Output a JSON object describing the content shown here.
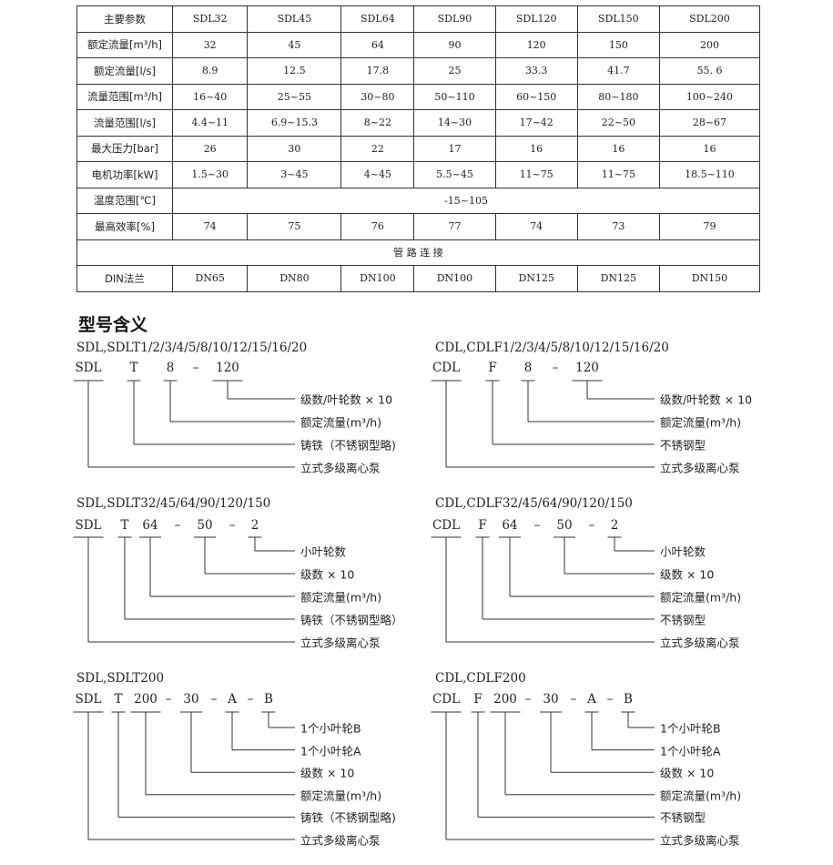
{
  "table": {
    "header": [
      "主要参数",
      "SDL32",
      "SDL45",
      "SDL64",
      "SDL90",
      "SDL120",
      "SDL150",
      "SDL200"
    ],
    "rows": [
      [
        "额定流量[m³/h]",
        "32",
        "45",
        "64",
        "90",
        "120",
        "150",
        "200"
      ],
      [
        "额定流量[l/s]",
        "8.9",
        "12.5",
        "17.8",
        "25",
        "33.3",
        "41.7",
        "55. 6"
      ],
      [
        "流量范围[m³/h]",
        "16~40",
        "25~55",
        "30~80",
        "50~110",
        "60~150",
        "80~180",
        "100~240"
      ],
      [
        "流量范围[l/s]",
        "4.4~11",
        "6.9~15.3",
        "8~22",
        "14~30",
        "17~42",
        "22~50",
        "28~67"
      ],
      [
        "最大压力[bar]",
        "26",
        "30",
        "22",
        "17",
        "16",
        "16",
        "16"
      ],
      [
        "电机功率[kW]",
        "1.5~30",
        "3~45",
        "4~45",
        "5.5~45",
        "11~75",
        "11~75",
        "18.5~110"
      ]
    ],
    "temp_label": "温度范围[℃]",
    "temp_value": "-15~105",
    "eff_row": [
      "最高效率[%]",
      "74",
      "75",
      "76",
      "77",
      "74",
      "73",
      "79"
    ],
    "pipe_section": "管 路 连 接",
    "din_row": [
      "DIN法兰",
      "DN65",
      "DN80",
      "DN100",
      "DN100",
      "DN125",
      "DN125",
      "DN150"
    ]
  },
  "section_title": "型号含义",
  "blocks": [
    {
      "title": "SDL,SDLT1/2/3/4/5/8/10/12/15/16/20",
      "codes": [
        "SDL",
        "T",
        "8",
        "–",
        "120"
      ],
      "labels": [
        "级数/叶轮数 × 10",
        "额定流量(m³/h)",
        "铸铁（不锈钢型略)",
        "立式多级离心泵"
      ]
    },
    {
      "title": "CDL,CDLF1/2/3/4/5/8/10/12/15/16/20",
      "codes": [
        "CDL",
        "F",
        "8",
        "–",
        "120"
      ],
      "labels": [
        "级数/叶轮数 × 10",
        "额定流量(m³/h)",
        "不锈钢型",
        "立式多级离心泵"
      ]
    },
    {
      "title": "SDL,SDLT32/45/64/90/120/150",
      "codes": [
        "SDL",
        "T",
        "64",
        "–",
        "50",
        "–",
        "2"
      ],
      "labels": [
        "小叶轮数",
        "级数 × 10",
        "额定流量(m³/h)",
        "铸铁（不锈钢型略）",
        "立式多级离心泵"
      ]
    },
    {
      "title": "CDL,CDLF32/45/64/90/120/150",
      "codes": [
        "CDL",
        "F",
        "64",
        "–",
        "50",
        "–",
        "2"
      ],
      "labels": [
        "小叶轮数",
        "级数 × 10",
        "额定流量(m³/h)",
        "不锈钢型",
        "立式多级离心泵"
      ]
    },
    {
      "title": "SDL,SDLT200",
      "codes": [
        "SDL",
        "T",
        "200",
        "–",
        "30",
        "–",
        "A",
        "–",
        "B"
      ],
      "labels": [
        "1个小叶轮B",
        "1个小叶轮A",
        "级数 × 10",
        "额定流量(m³/h)",
        "铸铁（不锈钢型略)",
        "立式多级离心泵"
      ]
    },
    {
      "title": "CDL,CDLF200",
      "codes": [
        "CDL",
        "F",
        "200",
        "–",
        "30",
        "–",
        "A",
        "–",
        "B"
      ],
      "labels": [
        "1个小叶轮B",
        "1个小叶轮A",
        "级数 × 10",
        "额定流量(m³/h)",
        "不锈钢型",
        "立式多级离心泵"
      ]
    }
  ]
}
